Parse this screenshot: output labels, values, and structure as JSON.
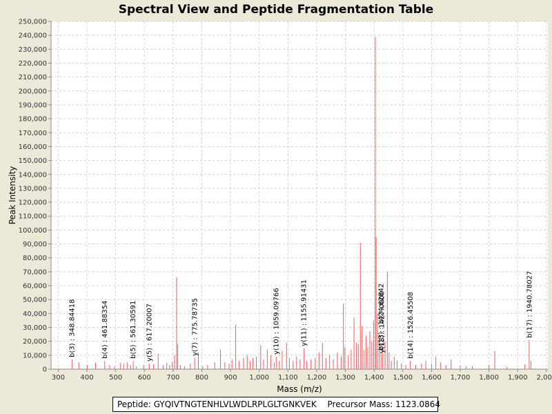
{
  "chart_data": {
    "type": "bar",
    "title": "Spectral View and Peptide Fragmentation Table",
    "xlabel": "Mass (m/z)",
    "ylabel": "Peak Intensity",
    "xlim": [
      275,
      2005
    ],
    "ylim": [
      0,
      250000
    ],
    "grid": true,
    "x_ticks": [
      300,
      400,
      500,
      600,
      700,
      800,
      900,
      1000,
      1100,
      1200,
      1300,
      1400,
      1500,
      1600,
      1700,
      1800,
      1900,
      2000
    ],
    "x_tick_labels": [
      "300",
      "400",
      "500",
      "600",
      "700",
      "800",
      "900",
      "1,000",
      "1,100",
      "1,200",
      "1,300",
      "1,400",
      "1,500",
      "1,600",
      "1,700",
      "1,800",
      "1,900",
      "2,000"
    ],
    "y_ticks": [
      0,
      10000,
      20000,
      30000,
      40000,
      50000,
      60000,
      70000,
      80000,
      90000,
      100000,
      110000,
      120000,
      130000,
      140000,
      150000,
      160000,
      170000,
      180000,
      190000,
      200000,
      210000,
      220000,
      230000,
      240000,
      250000
    ],
    "y_tick_labels": [
      "0",
      "10,000",
      "20,000",
      "30,000",
      "40,000",
      "50,000",
      "60,000",
      "70,000",
      "80,000",
      "90,000",
      "100,000",
      "110,000",
      "120,000",
      "130,000",
      "140,000",
      "150,000",
      "160,000",
      "170,000",
      "180,000",
      "190,000",
      "200,000",
      "210,000",
      "220,000",
      "230,000",
      "240,000",
      "250,000"
    ],
    "peaks": [
      {
        "mz": 348,
        "intensity": 7000
      },
      {
        "mz": 372,
        "intensity": 5000
      },
      {
        "mz": 401,
        "intensity": 3000
      },
      {
        "mz": 430,
        "intensity": 4500
      },
      {
        "mz": 462,
        "intensity": 6000
      },
      {
        "mz": 479,
        "intensity": 3000
      },
      {
        "mz": 496,
        "intensity": 2000
      },
      {
        "mz": 517,
        "intensity": 4500
      },
      {
        "mz": 528,
        "intensity": 4000
      },
      {
        "mz": 540,
        "intensity": 5000
      },
      {
        "mz": 552,
        "intensity": 3000
      },
      {
        "mz": 561,
        "intensity": 6000
      },
      {
        "mz": 572,
        "intensity": 2000
      },
      {
        "mz": 597,
        "intensity": 3000
      },
      {
        "mz": 617,
        "intensity": 4000
      },
      {
        "mz": 632,
        "intensity": 3500
      },
      {
        "mz": 648,
        "intensity": 11000
      },
      {
        "mz": 665,
        "intensity": 3000
      },
      {
        "mz": 678,
        "intensity": 4500
      },
      {
        "mz": 688,
        "intensity": 3000
      },
      {
        "mz": 697,
        "intensity": 5000
      },
      {
        "mz": 705,
        "intensity": 10000
      },
      {
        "mz": 712,
        "intensity": 66000
      },
      {
        "mz": 716,
        "intensity": 18000
      },
      {
        "mz": 725,
        "intensity": 3000
      },
      {
        "mz": 740,
        "intensity": 2000
      },
      {
        "mz": 760,
        "intensity": 4000
      },
      {
        "mz": 775,
        "intensity": 8000
      },
      {
        "mz": 788,
        "intensity": 12000
      },
      {
        "mz": 803,
        "intensity": 2000
      },
      {
        "mz": 820,
        "intensity": 3000
      },
      {
        "mz": 845,
        "intensity": 5000
      },
      {
        "mz": 865,
        "intensity": 14000
      },
      {
        "mz": 880,
        "intensity": 5000
      },
      {
        "mz": 895,
        "intensity": 4000
      },
      {
        "mz": 905,
        "intensity": 7000
      },
      {
        "mz": 918,
        "intensity": 32000
      },
      {
        "mz": 930,
        "intensity": 6000
      },
      {
        "mz": 945,
        "intensity": 8000
      },
      {
        "mz": 958,
        "intensity": 10000
      },
      {
        "mz": 968,
        "intensity": 6000
      },
      {
        "mz": 978,
        "intensity": 8000
      },
      {
        "mz": 990,
        "intensity": 9000
      },
      {
        "mz": 1005,
        "intensity": 17000
      },
      {
        "mz": 1015,
        "intensity": 7000
      },
      {
        "mz": 1028,
        "intensity": 14000
      },
      {
        "mz": 1040,
        "intensity": 10000
      },
      {
        "mz": 1052,
        "intensity": 5000
      },
      {
        "mz": 1059,
        "intensity": 9000
      },
      {
        "mz": 1070,
        "intensity": 6000
      },
      {
        "mz": 1080,
        "intensity": 13000
      },
      {
        "mz": 1095,
        "intensity": 19000
      },
      {
        "mz": 1105,
        "intensity": 8000
      },
      {
        "mz": 1118,
        "intensity": 6000
      },
      {
        "mz": 1130,
        "intensity": 9000
      },
      {
        "mz": 1142,
        "intensity": 7000
      },
      {
        "mz": 1156,
        "intensity": 15000
      },
      {
        "mz": 1165,
        "intensity": 6000
      },
      {
        "mz": 1180,
        "intensity": 7000
      },
      {
        "mz": 1195,
        "intensity": 8000
      },
      {
        "mz": 1208,
        "intensity": 12000
      },
      {
        "mz": 1220,
        "intensity": 19000
      },
      {
        "mz": 1232,
        "intensity": 8000
      },
      {
        "mz": 1245,
        "intensity": 10000
      },
      {
        "mz": 1258,
        "intensity": 7000
      },
      {
        "mz": 1272,
        "intensity": 12000
      },
      {
        "mz": 1285,
        "intensity": 9000
      },
      {
        "mz": 1293,
        "intensity": 47000
      },
      {
        "mz": 1298,
        "intensity": 16000
      },
      {
        "mz": 1310,
        "intensity": 10000
      },
      {
        "mz": 1320,
        "intensity": 14000
      },
      {
        "mz": 1330,
        "intensity": 37000
      },
      {
        "mz": 1338,
        "intensity": 19000
      },
      {
        "mz": 1345,
        "intensity": 18000
      },
      {
        "mz": 1352,
        "intensity": 91000
      },
      {
        "mz": 1358,
        "intensity": 31000
      },
      {
        "mz": 1365,
        "intensity": 14000
      },
      {
        "mz": 1372,
        "intensity": 24000
      },
      {
        "mz": 1378,
        "intensity": 16000
      },
      {
        "mz": 1385,
        "intensity": 27000
      },
      {
        "mz": 1392,
        "intensity": 20000
      },
      {
        "mz": 1398,
        "intensity": 35000
      },
      {
        "mz": 1404,
        "intensity": 239000
      },
      {
        "mz": 1407,
        "intensity": 95000
      },
      {
        "mz": 1412,
        "intensity": 40000
      },
      {
        "mz": 1418,
        "intensity": 25000
      },
      {
        "mz": 1424,
        "intensity": 12000
      },
      {
        "mz": 1430,
        "intensity": 16000
      },
      {
        "mz": 1438,
        "intensity": 20000
      },
      {
        "mz": 1446,
        "intensity": 70000
      },
      {
        "mz": 1452,
        "intensity": 12000
      },
      {
        "mz": 1460,
        "intensity": 6000
      },
      {
        "mz": 1470,
        "intensity": 9000
      },
      {
        "mz": 1480,
        "intensity": 6000
      },
      {
        "mz": 1495,
        "intensity": 4000
      },
      {
        "mz": 1510,
        "intensity": 3000
      },
      {
        "mz": 1526,
        "intensity": 6000
      },
      {
        "mz": 1545,
        "intensity": 3000
      },
      {
        "mz": 1565,
        "intensity": 4000
      },
      {
        "mz": 1580,
        "intensity": 6000
      },
      {
        "mz": 1600,
        "intensity": 4000
      },
      {
        "mz": 1615,
        "intensity": 9000
      },
      {
        "mz": 1632,
        "intensity": 5000
      },
      {
        "mz": 1650,
        "intensity": 3000
      },
      {
        "mz": 1668,
        "intensity": 7000
      },
      {
        "mz": 1700,
        "intensity": 2500
      },
      {
        "mz": 1720,
        "intensity": 2000
      },
      {
        "mz": 1742,
        "intensity": 2000
      },
      {
        "mz": 1800,
        "intensity": 3000
      },
      {
        "mz": 1820,
        "intensity": 13000
      },
      {
        "mz": 1862,
        "intensity": 1500
      },
      {
        "mz": 1925,
        "intensity": 3500
      },
      {
        "mz": 1940,
        "intensity": 21000
      },
      {
        "mz": 1946,
        "intensity": 6000
      }
    ],
    "annotations": [
      {
        "mz": 348.84418,
        "intensity": 7000,
        "label": "b(3) : 348.84418"
      },
      {
        "mz": 461.88354,
        "intensity": 6000,
        "label": "b(4) : 461.88354"
      },
      {
        "mz": 561.30591,
        "intensity": 6000,
        "label": "b(5) : 561.30591"
      },
      {
        "mz": 617.20007,
        "intensity": 4000,
        "label": "y(5) : 617.20007"
      },
      {
        "mz": 775.78735,
        "intensity": 8000,
        "label": "y(7) : 775.78735"
      },
      {
        "mz": 1059.09766,
        "intensity": 9000,
        "label": "y(10) : 1059.09766"
      },
      {
        "mz": 1155.91431,
        "intensity": 15000,
        "label": "y(11) : 1155.91431"
      },
      {
        "mz": 1424.62842,
        "intensity": 12000,
        "label": "b(13) : 1424.62842"
      },
      {
        "mz": 1427.0,
        "intensity": 10000,
        "label": "y(13) : 1427.0000"
      },
      {
        "mz": 1526.45508,
        "intensity": 6000,
        "label": "b(14) : 1526.45508"
      },
      {
        "mz": 1940.78027,
        "intensity": 21000,
        "label": "b(17) : 1940.78027"
      }
    ]
  },
  "footer": {
    "peptide": "Peptide: GYQIVTNGTENHLVLWDLRPLGLTGNKVEK",
    "precursor": "Precursor Mass: 1123.0864"
  },
  "colors": {
    "peak": "#FF5555",
    "grid": "#D0D0D0",
    "plot_bg": "#FFFFFF",
    "page_bg": "#ECE9D8"
  }
}
